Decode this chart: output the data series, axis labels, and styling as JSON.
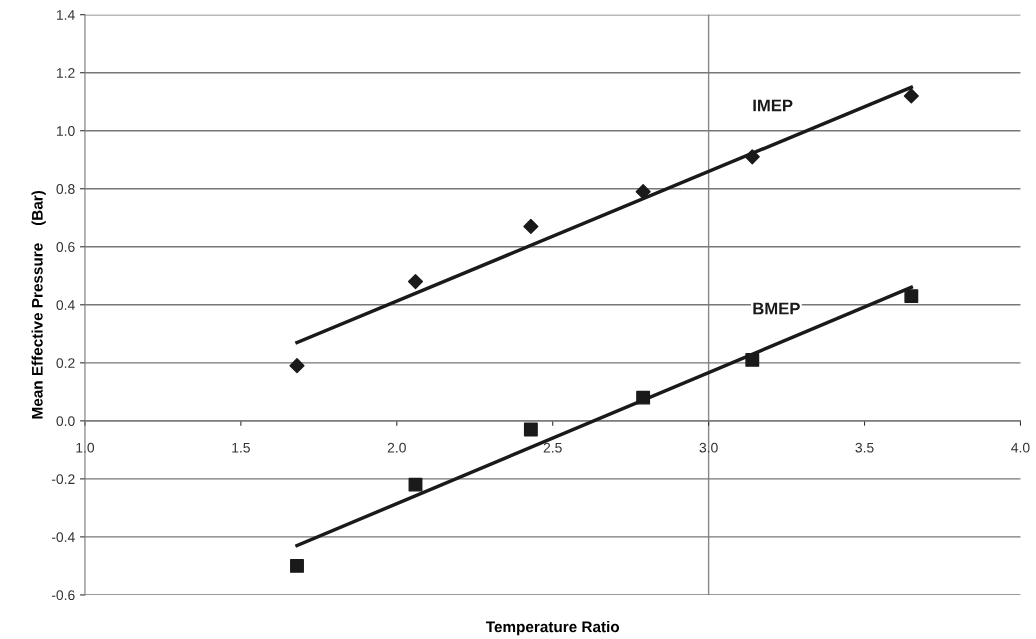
{
  "chart_data": {
    "type": "scatter",
    "xlabel": "Temperature Ratio",
    "ylabel": "Mean Effective Pressure    (Bar)",
    "series": [
      {
        "name": "IMEP",
        "marker": "diamond",
        "color": "#1a1a1a",
        "x": [
          1.68,
          2.06,
          2.43,
          2.79,
          3.14,
          3.65
        ],
        "values": [
          0.19,
          0.48,
          0.67,
          0.79,
          0.91,
          1.12
        ]
      },
      {
        "name": "BMEP",
        "marker": "square",
        "color": "#1a1a1a",
        "x": [
          1.68,
          2.06,
          2.43,
          2.79,
          3.14,
          3.65
        ],
        "values": [
          -0.5,
          -0.22,
          -0.03,
          0.08,
          0.21,
          0.43
        ]
      },
      {
        "type": "line",
        "marker": "none",
        "line_style": "solid",
        "color": "#1a1a1a",
        "x": [
          1.68,
          3.65
        ],
        "values": [
          0.27,
          1.15
        ]
      },
      {
        "type": "line",
        "marker": "none",
        "line_style": "solid",
        "color": "#1a1a1a",
        "x": [
          1.68,
          3.65
        ],
        "values": [
          -0.43,
          0.46
        ]
      }
    ],
    "xlim": [
      1.0,
      4.0
    ],
    "xticks": [
      {
        "value": 1.0,
        "label": "1.0"
      },
      {
        "value": 1.5,
        "label": "1.5"
      },
      {
        "value": 2.0,
        "label": "2.0"
      },
      {
        "value": 2.5,
        "label": "2.5"
      },
      {
        "value": 3.0,
        "label": "3.0"
      },
      {
        "value": 3.5,
        "label": "3.5"
      },
      {
        "value": 4.0,
        "label": "4.0"
      }
    ],
    "ylim": [
      -0.6,
      1.4
    ],
    "yticks": [
      {
        "value": -0.6,
        "label": "-0.6"
      },
      {
        "value": -0.4,
        "label": "-0.4"
      },
      {
        "value": -0.2,
        "label": "-0.2"
      },
      {
        "value": 0.0,
        "label": "0.0"
      },
      {
        "value": 0.2,
        "label": "0.2"
      },
      {
        "value": 0.4,
        "label": "0.4"
      },
      {
        "value": 0.6,
        "label": "0.6"
      },
      {
        "value": 0.8,
        "label": "0.8"
      },
      {
        "value": 1.0,
        "label": "1.0"
      },
      {
        "value": 1.2,
        "label": "1.2"
      },
      {
        "value": 1.4,
        "label": "1.4"
      }
    ],
    "ref_lines": [
      {
        "axis": "x",
        "value": 3.0,
        "color": "#888888",
        "line_style": "solid"
      }
    ],
    "grid": "y",
    "legend": false
  }
}
